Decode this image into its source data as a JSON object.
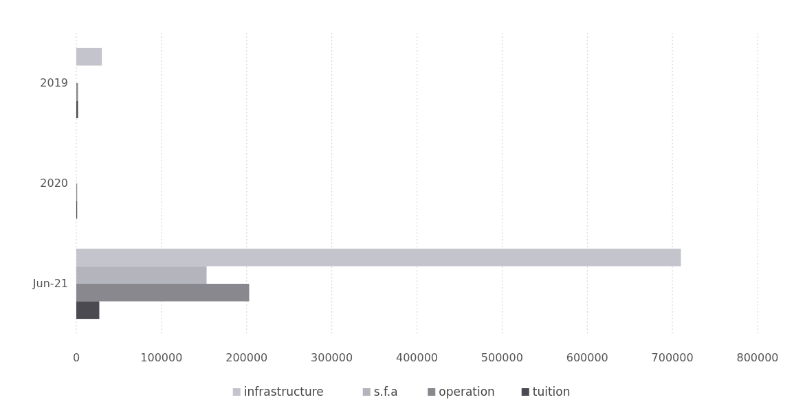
{
  "chart_data": {
    "type": "bar",
    "orientation": "horizontal",
    "categories": [
      "2019",
      "2020",
      "Jun-21"
    ],
    "series": [
      {
        "name": "infrastructure",
        "color": "#c4c4cc",
        "values": [
          30000,
          null,
          710000
        ]
      },
      {
        "name": "s.f.a",
        "color": "#b4b4bc",
        "values": [
          null,
          null,
          153000
        ]
      },
      {
        "name": "operation",
        "color": "#88888e",
        "values": [
          2000,
          1000,
          203000
        ]
      },
      {
        "name": "tuition",
        "color": "#4a4a50",
        "values": [
          2000,
          1000,
          27000
        ]
      }
    ],
    "xlim": [
      0,
      800000
    ],
    "xticks": [
      0,
      100000,
      200000,
      300000,
      400000,
      500000,
      600000,
      700000,
      800000
    ],
    "grid": "x",
    "legend": "bottom"
  }
}
